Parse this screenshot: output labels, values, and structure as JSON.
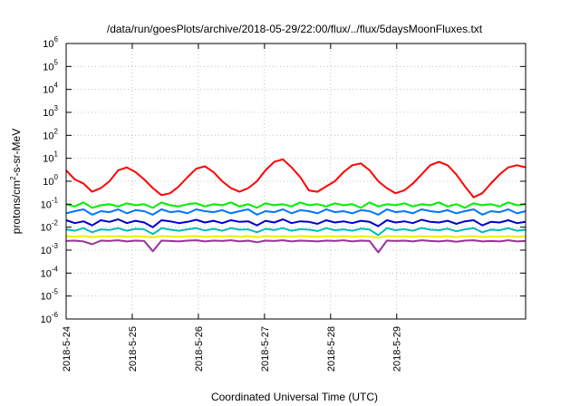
{
  "chart_data": {
    "type": "line",
    "title": "/data/run/goesPlots/archive/2018-05-29/22:00/flux/../flux/5daysMoonFluxes.txt",
    "xlabel": "Coordinated Universal Time (UTC)",
    "ylabel_parts": {
      "base": "protons/cm",
      "exp": "2",
      "tail": "-s-sr-MeV"
    },
    "yscale": "log",
    "ylim": [
      1e-06,
      1000000.0
    ],
    "xlim": [
      0,
      6.95
    ],
    "grid": true,
    "x_tick_labels": [
      "2018-5-24",
      "2018-5-25",
      "2018-5-26",
      "2018-5-27",
      "2018-5-28",
      "2018-5-29"
    ],
    "x_tick_positions": [
      0,
      1,
      2,
      3,
      4,
      5
    ],
    "y_tick_exponents": [
      -6,
      -5,
      -4,
      -3,
      -2,
      -1,
      0,
      1,
      2,
      3,
      4,
      5,
      6
    ],
    "series": [
      {
        "color": "#ff0000",
        "values": [
          3.0,
          1.2,
          0.8,
          0.35,
          0.5,
          1.0,
          3.0,
          4.0,
          2.5,
          1.2,
          0.5,
          0.25,
          0.3,
          0.6,
          1.5,
          3.5,
          4.5,
          2.5,
          1.0,
          0.5,
          0.35,
          0.5,
          1.0,
          3.0,
          7.0,
          9.0,
          4.0,
          1.5,
          0.4,
          0.35,
          0.6,
          1.0,
          2.5,
          5.0,
          6.0,
          3.0,
          1.0,
          0.5,
          0.3,
          0.4,
          0.8,
          2.0,
          5.0,
          7.0,
          5.0,
          2.0,
          0.6,
          0.2,
          0.3,
          0.8,
          2.0,
          4.0,
          5.0,
          4.0
        ]
      },
      {
        "color": "#00ee00",
        "values": [
          0.1,
          0.08,
          0.12,
          0.07,
          0.09,
          0.1,
          0.08,
          0.11,
          0.09,
          0.1,
          0.07,
          0.12,
          0.09,
          0.08,
          0.1,
          0.11,
          0.08,
          0.1,
          0.09,
          0.12,
          0.08,
          0.1,
          0.07,
          0.11,
          0.09,
          0.1,
          0.08,
          0.12,
          0.09,
          0.1,
          0.08,
          0.11,
          0.09,
          0.1,
          0.07,
          0.12,
          0.08,
          0.1,
          0.09,
          0.11,
          0.08,
          0.1,
          0.09,
          0.12,
          0.08,
          0.1,
          0.07,
          0.11,
          0.09,
          0.1,
          0.08,
          0.12,
          0.09,
          0.1
        ]
      },
      {
        "color": "#0077ff",
        "values": [
          0.04,
          0.05,
          0.06,
          0.035,
          0.05,
          0.045,
          0.06,
          0.04,
          0.055,
          0.05,
          0.035,
          0.06,
          0.045,
          0.05,
          0.04,
          0.06,
          0.05,
          0.045,
          0.055,
          0.04,
          0.05,
          0.06,
          0.035,
          0.05,
          0.045,
          0.06,
          0.04,
          0.055,
          0.05,
          0.04,
          0.06,
          0.045,
          0.05,
          0.04,
          0.055,
          0.05,
          0.035,
          0.06,
          0.045,
          0.05,
          0.04,
          0.06,
          0.05,
          0.045,
          0.055,
          0.04,
          0.05,
          0.06,
          0.035,
          0.05,
          0.045,
          0.06,
          0.04,
          0.05
        ]
      },
      {
        "color": "#0000cc",
        "values": [
          0.02,
          0.015,
          0.018,
          0.012,
          0.02,
          0.017,
          0.022,
          0.015,
          0.019,
          0.016,
          0.01,
          0.02,
          0.018,
          0.015,
          0.017,
          0.021,
          0.016,
          0.019,
          0.015,
          0.02,
          0.017,
          0.018,
          0.012,
          0.019,
          0.016,
          0.022,
          0.015,
          0.018,
          0.017,
          0.014,
          0.02,
          0.016,
          0.018,
          0.015,
          0.019,
          0.017,
          0.011,
          0.02,
          0.016,
          0.018,
          0.015,
          0.021,
          0.017,
          0.016,
          0.019,
          0.014,
          0.018,
          0.02,
          0.012,
          0.017,
          0.016,
          0.02,
          0.015,
          0.017
        ]
      },
      {
        "color": "#00bbbb",
        "values": [
          0.008,
          0.007,
          0.009,
          0.006,
          0.008,
          0.0075,
          0.009,
          0.007,
          0.0085,
          0.008,
          0.005,
          0.009,
          0.0078,
          0.007,
          0.008,
          0.009,
          0.0072,
          0.0085,
          0.007,
          0.009,
          0.0078,
          0.008,
          0.006,
          0.0085,
          0.0075,
          0.009,
          0.007,
          0.0082,
          0.0078,
          0.0068,
          0.009,
          0.0074,
          0.008,
          0.007,
          0.0086,
          0.0079,
          0.0045,
          0.009,
          0.0074,
          0.0082,
          0.007,
          0.0092,
          0.0078,
          0.0074,
          0.0086,
          0.0066,
          0.008,
          0.009,
          0.006,
          0.0078,
          0.0074,
          0.009,
          0.007,
          0.0078
        ]
      },
      {
        "color": "#eeee00",
        "values": [
          0.004,
          0.0038,
          0.0041,
          0.0037,
          0.004,
          0.0039,
          0.0041,
          0.0038,
          0.004,
          0.0039,
          0.0036,
          0.0041,
          0.0039,
          0.0038,
          0.004,
          0.0041,
          0.0038,
          0.004,
          0.0039,
          0.0041,
          0.0038,
          0.004,
          0.0037,
          0.0041,
          0.0039,
          0.004,
          0.0038,
          0.0041,
          0.0039,
          0.0038,
          0.004,
          0.0039,
          0.0041,
          0.0038,
          0.004,
          0.0039,
          0.0035,
          0.0041,
          0.0039,
          0.004,
          0.0038,
          0.0041,
          0.0039,
          0.0038,
          0.004,
          0.0037,
          0.004,
          0.0041,
          0.0037,
          0.0039,
          0.0038,
          0.0041,
          0.0038,
          0.004
        ]
      },
      {
        "color": "#993399",
        "values": [
          0.0025,
          0.0026,
          0.0024,
          0.0018,
          0.0026,
          0.0025,
          0.0027,
          0.0024,
          0.0026,
          0.0025,
          0.0009,
          0.0026,
          0.0025,
          0.0024,
          0.0026,
          0.0027,
          0.0024,
          0.0026,
          0.0025,
          0.0027,
          0.0024,
          0.0026,
          0.0022,
          0.0026,
          0.0025,
          0.0027,
          0.0024,
          0.0026,
          0.0025,
          0.0024,
          0.0026,
          0.0025,
          0.0027,
          0.0024,
          0.0026,
          0.0025,
          0.0008,
          0.0026,
          0.0025,
          0.0026,
          0.0024,
          0.0027,
          0.0025,
          0.0024,
          0.0026,
          0.0023,
          0.0026,
          0.0027,
          0.0024,
          0.0025,
          0.0024,
          0.0027,
          0.0024,
          0.0025
        ]
      }
    ]
  }
}
